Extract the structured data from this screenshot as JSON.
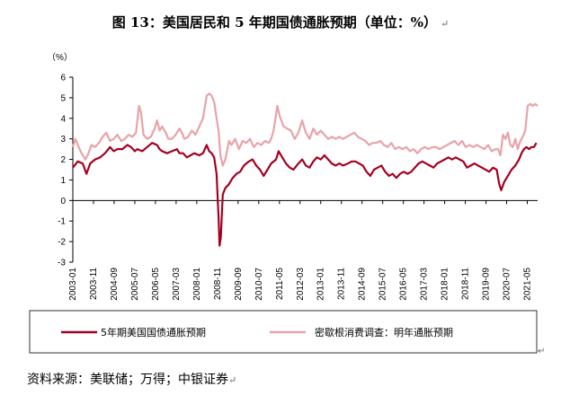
{
  "title": "图 13：美国居民和 5 年期国债通胀预期（单位：%）",
  "title_return_mark": "↵",
  "source": "资料来源：美联储；万得；中银证券",
  "source_return_mark": "↵",
  "box_return_mark": "↵",
  "colors": {
    "series1": "#A50021",
    "series2": "#E8A3A8",
    "axis": "#000000"
  },
  "chart_data": {
    "type": "line",
    "ylabel": "（%）",
    "ylim": [
      -3,
      6
    ],
    "yticks": [
      6,
      5,
      4,
      3,
      2,
      1,
      0,
      -1,
      -2,
      -3
    ],
    "x_range": [
      2003.0,
      2021.75
    ],
    "xtick_labels": [
      "2003-01",
      "2003-11",
      "2004-09",
      "2005-07",
      "2006-05",
      "2007-03",
      "2008-01",
      "2008-11",
      "2009-09",
      "2010-07",
      "2011-05",
      "2012-03",
      "2013-01",
      "2013-11",
      "2014-09",
      "2015-07",
      "2016-05",
      "2017-03",
      "2018-01",
      "2018-11",
      "2019-09",
      "2020-07",
      "2021-05"
    ],
    "grid": false,
    "legend_position": "bottom",
    "series": [
      {
        "name": "5年期美国国债通胀预期",
        "points": [
          [
            2003.0,
            1.6
          ],
          [
            2003.2,
            1.9
          ],
          [
            2003.4,
            1.8
          ],
          [
            2003.55,
            1.3
          ],
          [
            2003.7,
            1.8
          ],
          [
            2003.9,
            2.0
          ],
          [
            2004.1,
            2.1
          ],
          [
            2004.3,
            2.3
          ],
          [
            2004.5,
            2.6
          ],
          [
            2004.65,
            2.4
          ],
          [
            2004.8,
            2.5
          ],
          [
            2005.0,
            2.5
          ],
          [
            2005.2,
            2.7
          ],
          [
            2005.35,
            2.6
          ],
          [
            2005.5,
            2.4
          ],
          [
            2005.6,
            2.5
          ],
          [
            2005.8,
            2.4
          ],
          [
            2006.0,
            2.6
          ],
          [
            2006.2,
            2.8
          ],
          [
            2006.4,
            2.7
          ],
          [
            2006.5,
            2.5
          ],
          [
            2006.6,
            2.4
          ],
          [
            2006.8,
            2.3
          ],
          [
            2007.0,
            2.4
          ],
          [
            2007.2,
            2.5
          ],
          [
            2007.3,
            2.3
          ],
          [
            2007.45,
            2.3
          ],
          [
            2007.6,
            2.1
          ],
          [
            2007.75,
            2.2
          ],
          [
            2007.9,
            2.3
          ],
          [
            2008.1,
            2.2
          ],
          [
            2008.25,
            2.3
          ],
          [
            2008.4,
            2.7
          ],
          [
            2008.5,
            2.4
          ],
          [
            2008.6,
            2.3
          ],
          [
            2008.7,
            2.1
          ],
          [
            2008.8,
            1.3
          ],
          [
            2008.88,
            -0.8
          ],
          [
            2008.92,
            -2.2
          ],
          [
            2008.97,
            -1.8
          ],
          [
            2009.05,
            0.3
          ],
          [
            2009.15,
            0.6
          ],
          [
            2009.3,
            0.8
          ],
          [
            2009.45,
            1.1
          ],
          [
            2009.6,
            1.3
          ],
          [
            2009.75,
            1.4
          ],
          [
            2009.9,
            1.7
          ],
          [
            2010.1,
            1.9
          ],
          [
            2010.25,
            2.0
          ],
          [
            2010.4,
            1.7
          ],
          [
            2010.55,
            1.5
          ],
          [
            2010.7,
            1.2
          ],
          [
            2010.85,
            1.5
          ],
          [
            2011.0,
            1.8
          ],
          [
            2011.2,
            2.0
          ],
          [
            2011.3,
            2.4
          ],
          [
            2011.45,
            2.1
          ],
          [
            2011.6,
            1.8
          ],
          [
            2011.75,
            1.6
          ],
          [
            2011.9,
            1.5
          ],
          [
            2012.1,
            1.8
          ],
          [
            2012.25,
            2.0
          ],
          [
            2012.4,
            1.7
          ],
          [
            2012.55,
            1.6
          ],
          [
            2012.7,
            1.9
          ],
          [
            2012.85,
            2.1
          ],
          [
            2013.0,
            2.0
          ],
          [
            2013.15,
            2.2
          ],
          [
            2013.3,
            2.0
          ],
          [
            2013.45,
            1.8
          ],
          [
            2013.6,
            1.7
          ],
          [
            2013.75,
            1.8
          ],
          [
            2013.9,
            1.7
          ],
          [
            2014.1,
            1.8
          ],
          [
            2014.25,
            1.9
          ],
          [
            2014.4,
            1.9
          ],
          [
            2014.55,
            1.8
          ],
          [
            2014.7,
            1.7
          ],
          [
            2014.85,
            1.4
          ],
          [
            2015.0,
            1.2
          ],
          [
            2015.15,
            1.5
          ],
          [
            2015.3,
            1.6
          ],
          [
            2015.45,
            1.7
          ],
          [
            2015.6,
            1.4
          ],
          [
            2015.75,
            1.2
          ],
          [
            2015.9,
            1.3
          ],
          [
            2016.05,
            1.1
          ],
          [
            2016.2,
            1.3
          ],
          [
            2016.35,
            1.4
          ],
          [
            2016.5,
            1.3
          ],
          [
            2016.65,
            1.4
          ],
          [
            2016.8,
            1.6
          ],
          [
            2016.95,
            1.8
          ],
          [
            2017.1,
            1.9
          ],
          [
            2017.25,
            1.8
          ],
          [
            2017.4,
            1.7
          ],
          [
            2017.55,
            1.6
          ],
          [
            2017.7,
            1.8
          ],
          [
            2017.85,
            1.9
          ],
          [
            2018.0,
            2.0
          ],
          [
            2018.15,
            2.1
          ],
          [
            2018.3,
            2.0
          ],
          [
            2018.45,
            2.1
          ],
          [
            2018.6,
            2.0
          ],
          [
            2018.75,
            1.9
          ],
          [
            2018.9,
            1.6
          ],
          [
            2019.05,
            1.7
          ],
          [
            2019.2,
            1.8
          ],
          [
            2019.35,
            1.7
          ],
          [
            2019.5,
            1.6
          ],
          [
            2019.65,
            1.5
          ],
          [
            2019.8,
            1.4
          ],
          [
            2019.95,
            1.6
          ],
          [
            2020.1,
            1.5
          ],
          [
            2020.2,
            0.8
          ],
          [
            2020.28,
            0.5
          ],
          [
            2020.4,
            0.9
          ],
          [
            2020.55,
            1.2
          ],
          [
            2020.7,
            1.5
          ],
          [
            2020.85,
            1.7
          ],
          [
            2021.0,
            2.0
          ],
          [
            2021.1,
            2.3
          ],
          [
            2021.2,
            2.5
          ],
          [
            2021.3,
            2.6
          ],
          [
            2021.4,
            2.5
          ],
          [
            2021.5,
            2.6
          ],
          [
            2021.6,
            2.6
          ],
          [
            2021.7,
            2.8
          ]
        ]
      },
      {
        "name": "密歇根消费调查：明年通胀预期",
        "points": [
          [
            2003.0,
            2.6
          ],
          [
            2003.1,
            3.0
          ],
          [
            2003.2,
            2.7
          ],
          [
            2003.35,
            2.3
          ],
          [
            2003.5,
            2.0
          ],
          [
            2003.6,
            2.2
          ],
          [
            2003.75,
            2.7
          ],
          [
            2003.9,
            2.6
          ],
          [
            2004.05,
            2.8
          ],
          [
            2004.2,
            3.1
          ],
          [
            2004.35,
            3.3
          ],
          [
            2004.5,
            2.9
          ],
          [
            2004.65,
            3.0
          ],
          [
            2004.8,
            3.2
          ],
          [
            2004.95,
            2.9
          ],
          [
            2005.1,
            3.0
          ],
          [
            2005.25,
            3.2
          ],
          [
            2005.4,
            3.1
          ],
          [
            2005.55,
            3.3
          ],
          [
            2005.67,
            4.6
          ],
          [
            2005.75,
            4.3
          ],
          [
            2005.85,
            3.2
          ],
          [
            2006.0,
            3.0
          ],
          [
            2006.15,
            3.1
          ],
          [
            2006.3,
            3.5
          ],
          [
            2006.4,
            3.9
          ],
          [
            2006.5,
            3.4
          ],
          [
            2006.6,
            3.6
          ],
          [
            2006.75,
            3.3
          ],
          [
            2006.85,
            3.0
          ],
          [
            2007.0,
            3.0
          ],
          [
            2007.15,
            3.2
          ],
          [
            2007.3,
            3.5
          ],
          [
            2007.4,
            3.3
          ],
          [
            2007.5,
            3.0
          ],
          [
            2007.65,
            3.1
          ],
          [
            2007.8,
            3.4
          ],
          [
            2007.95,
            3.2
          ],
          [
            2008.1,
            3.6
          ],
          [
            2008.25,
            4.0
          ],
          [
            2008.4,
            5.1
          ],
          [
            2008.5,
            5.2
          ],
          [
            2008.6,
            5.1
          ],
          [
            2008.7,
            4.8
          ],
          [
            2008.8,
            4.0
          ],
          [
            2008.88,
            3.4
          ],
          [
            2008.95,
            2.2
          ],
          [
            2009.05,
            1.7
          ],
          [
            2009.15,
            2.0
          ],
          [
            2009.3,
            2.9
          ],
          [
            2009.4,
            2.7
          ],
          [
            2009.55,
            3.0
          ],
          [
            2009.7,
            2.5
          ],
          [
            2009.85,
            2.9
          ],
          [
            2010.0,
            2.8
          ],
          [
            2010.15,
            3.0
          ],
          [
            2010.3,
            2.6
          ],
          [
            2010.45,
            2.8
          ],
          [
            2010.6,
            2.7
          ],
          [
            2010.75,
            2.9
          ],
          [
            2010.9,
            2.8
          ],
          [
            2011.0,
            3.0
          ],
          [
            2011.1,
            3.4
          ],
          [
            2011.25,
            4.6
          ],
          [
            2011.35,
            4.1
          ],
          [
            2011.5,
            3.6
          ],
          [
            2011.65,
            3.5
          ],
          [
            2011.8,
            3.4
          ],
          [
            2011.95,
            3.0
          ],
          [
            2012.1,
            3.3
          ],
          [
            2012.25,
            3.9
          ],
          [
            2012.4,
            3.3
          ],
          [
            2012.55,
            3.0
          ],
          [
            2012.7,
            3.5
          ],
          [
            2012.85,
            3.2
          ],
          [
            2013.0,
            3.4
          ],
          [
            2013.15,
            3.2
          ],
          [
            2013.3,
            3.0
          ],
          [
            2013.45,
            3.1
          ],
          [
            2013.6,
            3.0
          ],
          [
            2013.75,
            3.1
          ],
          [
            2013.9,
            3.0
          ],
          [
            2014.05,
            3.1
          ],
          [
            2014.2,
            3.2
          ],
          [
            2014.35,
            3.3
          ],
          [
            2014.5,
            3.1
          ],
          [
            2014.65,
            3.0
          ],
          [
            2014.8,
            2.9
          ],
          [
            2014.95,
            2.7
          ],
          [
            2015.1,
            2.8
          ],
          [
            2015.25,
            2.8
          ],
          [
            2015.4,
            2.9
          ],
          [
            2015.55,
            2.7
          ],
          [
            2015.7,
            2.6
          ],
          [
            2015.85,
            2.8
          ],
          [
            2016.0,
            2.5
          ],
          [
            2016.15,
            2.6
          ],
          [
            2016.3,
            2.5
          ],
          [
            2016.45,
            2.6
          ],
          [
            2016.6,
            2.4
          ],
          [
            2016.75,
            2.5
          ],
          [
            2016.9,
            2.3
          ],
          [
            2017.05,
            2.5
          ],
          [
            2017.2,
            2.6
          ],
          [
            2017.35,
            2.5
          ],
          [
            2017.5,
            2.6
          ],
          [
            2017.65,
            2.6
          ],
          [
            2017.8,
            2.5
          ],
          [
            2017.95,
            2.6
          ],
          [
            2018.1,
            2.7
          ],
          [
            2018.25,
            2.8
          ],
          [
            2018.4,
            2.9
          ],
          [
            2018.55,
            2.7
          ],
          [
            2018.7,
            2.9
          ],
          [
            2018.85,
            2.6
          ],
          [
            2019.0,
            2.7
          ],
          [
            2019.15,
            2.6
          ],
          [
            2019.3,
            2.7
          ],
          [
            2019.45,
            2.6
          ],
          [
            2019.6,
            2.5
          ],
          [
            2019.75,
            2.7
          ],
          [
            2019.9,
            2.4
          ],
          [
            2020.05,
            2.5
          ],
          [
            2020.15,
            2.5
          ],
          [
            2020.25,
            2.2
          ],
          [
            2020.35,
            3.2
          ],
          [
            2020.45,
            3.0
          ],
          [
            2020.55,
            3.3
          ],
          [
            2020.65,
            2.7
          ],
          [
            2020.75,
            2.6
          ],
          [
            2020.85,
            3.0
          ],
          [
            2020.95,
            2.5
          ],
          [
            2021.05,
            2.9
          ],
          [
            2021.15,
            3.1
          ],
          [
            2021.25,
            3.4
          ],
          [
            2021.35,
            4.6
          ],
          [
            2021.45,
            4.7
          ],
          [
            2021.55,
            4.6
          ],
          [
            2021.65,
            4.7
          ],
          [
            2021.75,
            4.6
          ]
        ]
      }
    ]
  }
}
